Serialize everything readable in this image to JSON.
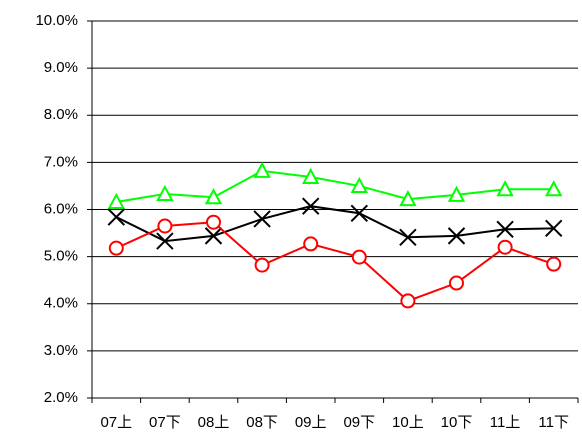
{
  "chart_data": {
    "type": "line",
    "categories": [
      "07上",
      "07下",
      "08上",
      "08下",
      "09上",
      "09下",
      "10上",
      "10下",
      "11上",
      "11下"
    ],
    "series": [
      {
        "color": "#00ff00",
        "marker": "triangle",
        "values": [
          6.16,
          6.33,
          6.26,
          6.82,
          6.69,
          6.5,
          6.22,
          6.31,
          6.43,
          6.43
        ]
      },
      {
        "color": "#000000",
        "marker": "x",
        "values": [
          5.84,
          5.33,
          5.44,
          5.8,
          6.07,
          5.92,
          5.41,
          5.44,
          5.58,
          5.6
        ]
      },
      {
        "color": "#ff0000",
        "marker": "circle",
        "values": [
          5.18,
          5.65,
          5.73,
          4.82,
          5.27,
          4.99,
          4.06,
          4.44,
          5.2,
          4.84
        ]
      }
    ],
    "ylim": [
      2,
      10
    ],
    "yticks": [
      {
        "value": 2,
        "label": "2.0%"
      },
      {
        "value": 3,
        "label": "3.0%"
      },
      {
        "value": 4,
        "label": "4.0%"
      },
      {
        "value": 5,
        "label": "5.0%"
      },
      {
        "value": 6,
        "label": "6.0%"
      },
      {
        "value": 7,
        "label": "7.0%"
      },
      {
        "value": 8,
        "label": "8.0%"
      },
      {
        "value": 9,
        "label": "9.0%"
      },
      {
        "value": 10,
        "label": "10.0%"
      }
    ],
    "grid": true
  }
}
